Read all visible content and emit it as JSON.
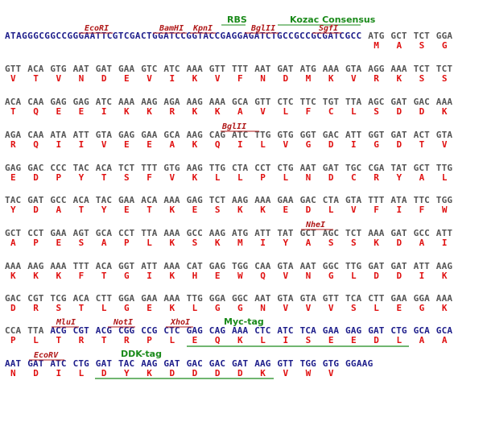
{
  "sequence_rows": [
    {
      "prefix": "ATAGGGCGGCCGGGAATTCGTCGACTGGATCCGGTACCGAGGAGATCTGCCGCCGCGATCGCC",
      "codons": [
        "ATG",
        "GCT",
        "TCT",
        "GGA"
      ],
      "amino_acids": [
        "M",
        "A",
        "S",
        "G"
      ],
      "annotations": [
        {
          "label": "RBS"
        },
        {
          "label": "Kozac Consensus"
        },
        {
          "label": "EcoRI"
        },
        {
          "label": "BamHI"
        },
        {
          "label": "KpnI"
        },
        {
          "label": "BglII"
        },
        {
          "label": "SgfI"
        }
      ]
    },
    {
      "codons": [
        "GTT",
        "ACA",
        "GTG",
        "AAT",
        "GAT",
        "GAA",
        "GTC",
        "ATC",
        "AAA",
        "GTT",
        "TTT",
        "AAT",
        "GAT",
        "ATG",
        "AAA",
        "GTA",
        "AGG",
        "AAA",
        "TCT",
        "TCT"
      ],
      "amino_acids": [
        "V",
        "T",
        "V",
        "N",
        "D",
        "E",
        "V",
        "I",
        "K",
        "V",
        "F",
        "N",
        "D",
        "M",
        "K",
        "V",
        "R",
        "K",
        "S",
        "S"
      ],
      "annotations": []
    },
    {
      "codons": [
        "ACA",
        "CAA",
        "GAG",
        "GAG",
        "ATC",
        "AAA",
        "AAG",
        "AGA",
        "AAG",
        "AAA",
        "GCA",
        "GTT",
        "CTC",
        "TTC",
        "TGT",
        "TTA",
        "AGC",
        "GAT",
        "GAC",
        "AAA"
      ],
      "amino_acids": [
        "T",
        "Q",
        "E",
        "E",
        "I",
        "K",
        "K",
        "R",
        "K",
        "K",
        "A",
        "V",
        "L",
        "F",
        "C",
        "L",
        "S",
        "D",
        "D",
        "K"
      ],
      "annotations": []
    },
    {
      "codons": [
        "AGA",
        "CAA",
        "ATA",
        "ATT",
        "GTA",
        "GAG",
        "GAA",
        "GCA",
        "AAG",
        "CAG",
        "ATC",
        "TTG",
        "GTG",
        "GGT",
        "GAC",
        "ATT",
        "GGT",
        "GAT",
        "ACT",
        "GTA"
      ],
      "amino_acids": [
        "R",
        "Q",
        "I",
        "I",
        "V",
        "E",
        "E",
        "A",
        "K",
        "Q",
        "I",
        "L",
        "V",
        "G",
        "D",
        "I",
        "G",
        "D",
        "T",
        "V"
      ],
      "annotations": [
        {
          "label": "BglII"
        }
      ]
    },
    {
      "codons": [
        "GAG",
        "GAC",
        "CCC",
        "TAC",
        "ACA",
        "TCT",
        "TTT",
        "GTG",
        "AAG",
        "TTG",
        "CTA",
        "CCT",
        "CTG",
        "AAT",
        "GAT",
        "TGC",
        "CGA",
        "TAT",
        "GCT",
        "TTG"
      ],
      "amino_acids": [
        "E",
        "D",
        "P",
        "Y",
        "T",
        "S",
        "F",
        "V",
        "K",
        "L",
        "L",
        "P",
        "L",
        "N",
        "D",
        "C",
        "R",
        "Y",
        "A",
        "L"
      ],
      "annotations": []
    },
    {
      "codons": [
        "TAC",
        "GAT",
        "GCC",
        "ACA",
        "TAC",
        "GAA",
        "ACA",
        "AAA",
        "GAG",
        "TCT",
        "AAG",
        "AAA",
        "GAA",
        "GAC",
        "CTA",
        "GTA",
        "TTT",
        "ATA",
        "TTC",
        "TGG"
      ],
      "amino_acids": [
        "Y",
        "D",
        "A",
        "T",
        "Y",
        "E",
        "T",
        "K",
        "E",
        "S",
        "K",
        "K",
        "E",
        "D",
        "L",
        "V",
        "F",
        "I",
        "F",
        "W"
      ],
      "annotations": []
    },
    {
      "codons": [
        "GCT",
        "CCT",
        "GAA",
        "AGT",
        "GCA",
        "CCT",
        "TTA",
        "AAA",
        "GCC",
        "AAG",
        "ATG",
        "ATT",
        "TAT",
        "GCT",
        "AGC",
        "TCT",
        "AAA",
        "GAT",
        "GCC",
        "ATT"
      ],
      "amino_acids": [
        "A",
        "P",
        "E",
        "S",
        "A",
        "P",
        "L",
        "K",
        "S",
        "K",
        "M",
        "I",
        "Y",
        "A",
        "S",
        "S",
        "K",
        "D",
        "A",
        "I"
      ],
      "annotations": [
        {
          "label": "NheI"
        }
      ]
    },
    {
      "codons": [
        "AAA",
        "AAG",
        "AAA",
        "TTT",
        "ACA",
        "GGT",
        "ATT",
        "AAA",
        "CAT",
        "GAG",
        "TGG",
        "CAA",
        "GTA",
        "AAT",
        "GGC",
        "TTG",
        "GAT",
        "GAT",
        "ATT",
        "AAG"
      ],
      "amino_acids": [
        "K",
        "K",
        "K",
        "F",
        "T",
        "G",
        "I",
        "K",
        "H",
        "E",
        "W",
        "Q",
        "V",
        "N",
        "G",
        "L",
        "D",
        "D",
        "I",
        "K"
      ],
      "annotations": []
    },
    {
      "codons": [
        "GAC",
        "CGT",
        "TCG",
        "ACA",
        "CTT",
        "GGA",
        "GAA",
        "AAA",
        "TTG",
        "GGA",
        "GGC",
        "AAT",
        "GTA",
        "GTA",
        "GTT",
        "TCA",
        "CTT",
        "GAA",
        "GGA",
        "AAA"
      ],
      "amino_acids": [
        "D",
        "R",
        "S",
        "T",
        "L",
        "G",
        "E",
        "K",
        "L",
        "G",
        "G",
        "N",
        "V",
        "V",
        "V",
        "S",
        "L",
        "E",
        "G",
        "K"
      ],
      "annotations": []
    },
    {
      "codons": [
        "CCA",
        "TTA",
        "ACG",
        "CGT",
        "ACG",
        "CGG",
        "CCG",
        "CTC",
        "GAG",
        "CAG",
        "AAA",
        "CTC",
        "ATC",
        "TCA",
        "GAA",
        "GAG",
        "GAT",
        "CTG",
        "GCA",
        "GCA"
      ],
      "amino_acids": [
        "P",
        "L",
        "T",
        "R",
        "T",
        "R",
        "P",
        "L",
        "E",
        "Q",
        "K",
        "L",
        "I",
        "S",
        "E",
        "E",
        "D",
        "L",
        "A",
        "A"
      ],
      "annotations": [
        {
          "label": "MluI"
        },
        {
          "label": "NotI"
        },
        {
          "label": "XhoI"
        },
        {
          "label": "Myc-tag"
        }
      ]
    },
    {
      "codons": [
        "AAT",
        "GAT",
        "ATC",
        "CTG",
        "GAT",
        "TAC",
        "AAG",
        "GAT",
        "GAC",
        "GAC",
        "GAT",
        "AAG",
        "GTT",
        "TGG",
        "GTG",
        "GGAAG"
      ],
      "amino_acids": [
        "N",
        "D",
        "I",
        "L",
        "D",
        "Y",
        "K",
        "D",
        "D",
        "D",
        "D",
        "K",
        "V",
        "W",
        "V",
        null
      ],
      "annotations": [
        {
          "label": "EcoRV"
        },
        {
          "label": "DDK-tag"
        }
      ]
    }
  ]
}
